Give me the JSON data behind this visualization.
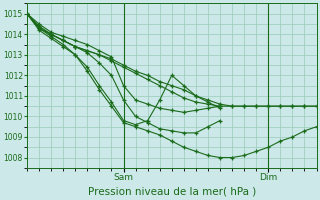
{
  "title": "Pression niveau de la mer( hPa )",
  "bg_color": "#cce8e8",
  "grid_color": "#99ccbb",
  "line_color": "#1a6b1a",
  "ylim": [
    1007.5,
    1015.5
  ],
  "yticks": [
    1008,
    1009,
    1010,
    1011,
    1012,
    1013,
    1014,
    1015
  ],
  "xlabel_sam": "Sam",
  "xlabel_dim": "Dim",
  "xlim": [
    0,
    72
  ],
  "sam_x": 24,
  "dim_x": 60,
  "lines": [
    {
      "x": [
        0,
        3,
        6,
        9,
        12,
        15,
        18,
        21,
        24,
        27,
        30,
        33,
        36,
        39,
        42,
        45,
        48
      ],
      "y": [
        1015.0,
        1014.5,
        1014.1,
        1013.9,
        1013.7,
        1013.5,
        1013.2,
        1012.9,
        1011.5,
        1010.8,
        1010.6,
        1010.4,
        1010.3,
        1010.2,
        1010.3,
        1010.4,
        1010.5
      ]
    },
    {
      "x": [
        0,
        3,
        6,
        9,
        12,
        15,
        18,
        21,
        24,
        27,
        30,
        33,
        36,
        39,
        42,
        45,
        48
      ],
      "y": [
        1015.0,
        1014.4,
        1014.0,
        1013.7,
        1013.4,
        1013.1,
        1012.6,
        1012.0,
        1010.8,
        1010.0,
        1009.7,
        1009.4,
        1009.3,
        1009.2,
        1009.2,
        1009.5,
        1009.8
      ]
    },
    {
      "x": [
        0,
        3,
        6,
        9,
        12,
        15,
        18,
        21,
        24,
        27,
        30,
        33,
        36,
        39,
        42,
        45,
        48
      ],
      "y": [
        1015.0,
        1014.3,
        1013.9,
        1013.5,
        1013.0,
        1012.4,
        1011.5,
        1010.7,
        1009.8,
        1009.6,
        1009.8,
        1010.8,
        1012.0,
        1011.5,
        1011.0,
        1010.7,
        1010.4
      ]
    },
    {
      "x": [
        0,
        3,
        6,
        9,
        12,
        15,
        18,
        21,
        24,
        27,
        30,
        33,
        36,
        39,
        42,
        45,
        48,
        51,
        54,
        57,
        60,
        63,
        66,
        69,
        72
      ],
      "y": [
        1015.0,
        1014.2,
        1013.8,
        1013.4,
        1013.0,
        1012.2,
        1011.3,
        1010.5,
        1009.7,
        1009.5,
        1009.3,
        1009.1,
        1008.8,
        1008.5,
        1008.3,
        1008.1,
        1008.0,
        1008.0,
        1008.1,
        1008.3,
        1008.5,
        1008.8,
        1009.0,
        1009.3,
        1009.5
      ]
    },
    {
      "x": [
        0,
        3,
        6,
        9,
        12,
        15,
        18,
        21,
        24,
        27,
        30,
        33,
        36,
        39,
        42,
        45,
        48,
        51,
        54,
        57,
        60,
        63,
        66,
        69,
        72
      ],
      "y": [
        1015.0,
        1014.3,
        1014.0,
        1013.7,
        1013.4,
        1013.2,
        1013.0,
        1012.7,
        1012.4,
        1012.1,
        1011.8,
        1011.5,
        1011.2,
        1010.9,
        1010.7,
        1010.6,
        1010.5,
        1010.5,
        1010.5,
        1010.5,
        1010.5,
        1010.5,
        1010.5,
        1010.5,
        1010.5
      ]
    },
    {
      "x": [
        0,
        3,
        6,
        9,
        12,
        15,
        18,
        21,
        24,
        27,
        30,
        33,
        36,
        39,
        42,
        45,
        48,
        51,
        54,
        57,
        60,
        63,
        66,
        69,
        72
      ],
      "y": [
        1015.0,
        1014.3,
        1014.0,
        1013.7,
        1013.4,
        1013.2,
        1013.0,
        1012.8,
        1012.5,
        1012.2,
        1012.0,
        1011.7,
        1011.5,
        1011.3,
        1011.0,
        1010.8,
        1010.6,
        1010.5,
        1010.5,
        1010.5,
        1010.5,
        1010.5,
        1010.5,
        1010.5,
        1010.5
      ]
    }
  ]
}
